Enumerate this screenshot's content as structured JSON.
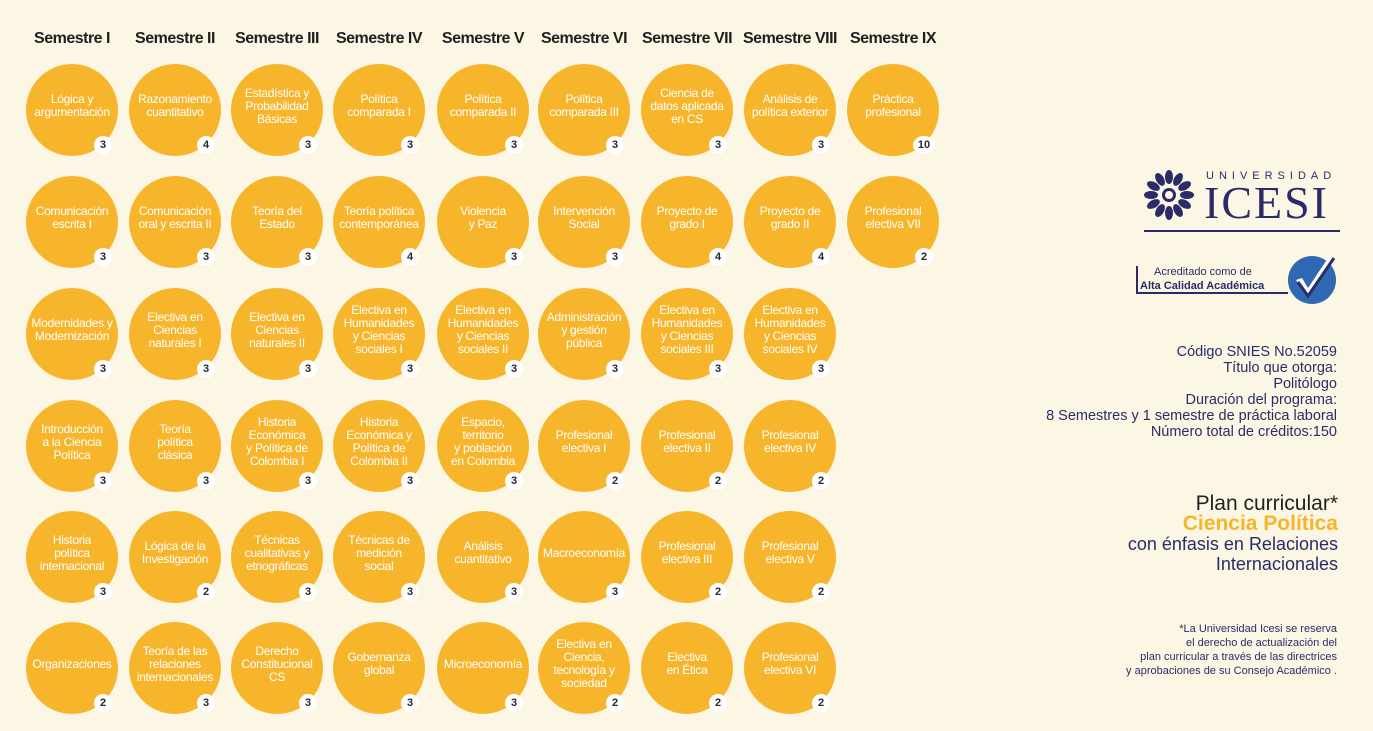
{
  "semesters": [
    {
      "header": "Semestre I",
      "courses": [
        {
          "name": "Lógica y\nargumentación",
          "credits": "3"
        },
        {
          "name": "Comunicación\nescrita I",
          "credits": "3"
        },
        {
          "name": "Modernidades y\nModernización",
          "credits": "3"
        },
        {
          "name": "Introducción\na la Ciencia\nPolítica",
          "credits": "3"
        },
        {
          "name": "Historia\npolítica\ninternacional",
          "credits": "3"
        },
        {
          "name": "Organizaciones",
          "credits": "2"
        }
      ]
    },
    {
      "header": "Semestre II",
      "courses": [
        {
          "name": "Razonamiento\ncuantitativo",
          "credits": "4"
        },
        {
          "name": "Comunicación\noral y escrita II",
          "credits": "3"
        },
        {
          "name": "Electiva en\nCiencias\nnaturales I",
          "credits": "3"
        },
        {
          "name": "Teoría\npolítica\nclásica",
          "credits": "3"
        },
        {
          "name": "Lógica de la\nInvestigación",
          "credits": "2"
        },
        {
          "name": "Teoría de las\nrelaciones\ninternacionales",
          "credits": "3"
        }
      ]
    },
    {
      "header": "Semestre III",
      "courses": [
        {
          "name": "Estadística y\nProbabilidad\nBásicas",
          "credits": "3"
        },
        {
          "name": "Teoría del\nEstado",
          "credits": "3"
        },
        {
          "name": "Electiva en\nCiencias\nnaturales II",
          "credits": "3"
        },
        {
          "name": "Historia\nEconómica\ny Política de\nColombia I",
          "credits": "3"
        },
        {
          "name": "Técnicas\ncualitativas y\netnográficas",
          "credits": "3"
        },
        {
          "name": "Derecho\nConstitucional\nCS",
          "credits": "3"
        }
      ]
    },
    {
      "header": "Semestre IV",
      "courses": [
        {
          "name": "Política\ncomparada I",
          "credits": "3"
        },
        {
          "name": "Teoría política\ncontemporánea",
          "credits": "4"
        },
        {
          "name": "Electiva en\nHumanidades\ny Ciencias\nsociales I",
          "credits": "3"
        },
        {
          "name": "Historia\nEconómica y\nPolítica de\nColombia II",
          "credits": "3"
        },
        {
          "name": "Técnicas de\nmedición\nsocial",
          "credits": "3"
        },
        {
          "name": "Gobernanza\nglobal",
          "credits": "3"
        }
      ]
    },
    {
      "header": "Semestre V",
      "courses": [
        {
          "name": "Política\ncomparada II",
          "credits": "3"
        },
        {
          "name": "Violencia\ny Paz",
          "credits": "3"
        },
        {
          "name": "Electiva en\nHumanidades\ny Ciencias\nsociales II",
          "credits": "3"
        },
        {
          "name": "Espacio,\nterritorio\ny población\nen Colombia",
          "credits": "3"
        },
        {
          "name": "Análisis\ncuantitativo",
          "credits": "3"
        },
        {
          "name": "Microeconomía",
          "credits": "3"
        }
      ]
    },
    {
      "header": "Semestre VI",
      "courses": [
        {
          "name": "Política\ncomparada III",
          "credits": "3"
        },
        {
          "name": "Intervención\nSocial",
          "credits": "3"
        },
        {
          "name": "Administración\ny gestión\npública",
          "credits": "3"
        },
        {
          "name": "Profesional\nelectiva I",
          "credits": "2"
        },
        {
          "name": "Macroeconomía",
          "credits": "3"
        },
        {
          "name": "Electiva en\nCiencia,\ntecnología y\nsociedad",
          "credits": "2"
        }
      ]
    },
    {
      "header": "Semestre VII",
      "courses": [
        {
          "name": "Ciencia de\ndatos aplicada\nen CS",
          "credits": "3"
        },
        {
          "name": "Proyecto de\ngrado I",
          "credits": "4"
        },
        {
          "name": "Electiva en\nHumanidades\ny Ciencias\nsociales III",
          "credits": "3"
        },
        {
          "name": "Profesional\nelectiva II",
          "credits": "2"
        },
        {
          "name": "Profesional\nelectiva III",
          "credits": "2"
        },
        {
          "name": "Electiva\nen Ética",
          "credits": "2"
        }
      ]
    },
    {
      "header": "Semestre VIII",
      "courses": [
        {
          "name": "Análisis de\npolítica exterior",
          "credits": "3"
        },
        {
          "name": "Proyecto de\ngrado II",
          "credits": "4"
        },
        {
          "name": "Electiva en\nHumanidades\ny Ciencias\nsociales IV",
          "credits": "3"
        },
        {
          "name": "Profesional\nelectiva IV",
          "credits": "2"
        },
        {
          "name": "Profesional\nelectiva V",
          "credits": "2"
        },
        {
          "name": "Profesional\nelectiva VI",
          "credits": "2"
        }
      ]
    },
    {
      "header": "Semestre IX",
      "courses": [
        {
          "name": "Práctica\nprofesional",
          "credits": "10"
        },
        {
          "name": "Profesional\nelectiva VII",
          "credits": "2"
        }
      ]
    }
  ],
  "logo": {
    "universidad": "UNIVERSIDAD",
    "name": "ICESI",
    "accent": "#2b2b6a"
  },
  "accreditation": {
    "line1": "Acreditado como de",
    "line2": "Alta Calidad Académica"
  },
  "program_info": [
    "Código SNIES No.52059",
    "Título que otorga:",
    "Politólogo",
    "Duración del programa:",
    "8 Semestres y 1 semestre de práctica laboral",
    "Número total de créditos:150"
  ],
  "plan": {
    "title": "Plan curricular*",
    "program": "Ciencia Política",
    "emphasis_line1": "con énfasis en Relaciones",
    "emphasis_line2": "Internacionales"
  },
  "footnote": [
    "*La Universidad Icesi se reserva",
    "el derecho de actualización del",
    "plan curricular a través de las directrices",
    "y aprobaciones de su Consejo Académico ."
  ],
  "colors": {
    "circle": "#f7b52c",
    "background": "#fcf6e4",
    "text_dark": "#2b2b6a"
  }
}
